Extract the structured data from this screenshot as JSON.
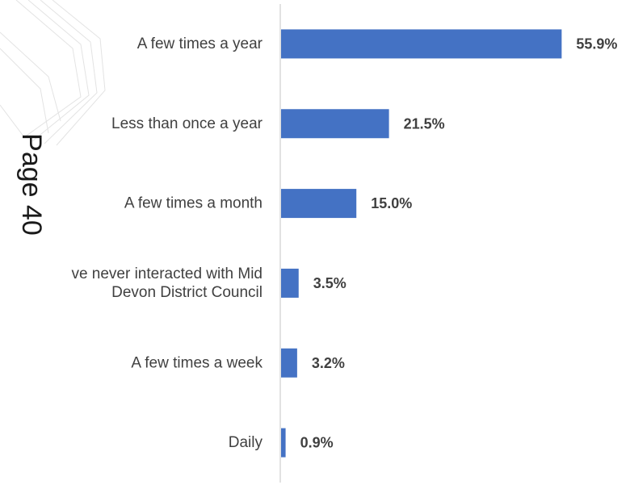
{
  "page_marker": "Page 40",
  "colors": {
    "bar": "#4472c4",
    "axis": "#d9d9d9",
    "text": "#404040"
  },
  "chart_data": {
    "type": "bar",
    "orientation": "horizontal",
    "title": "",
    "xlabel": "",
    "ylabel": "",
    "categories": [
      "A few times a year",
      "Less than once a year",
      "A few times a month",
      "I have never interacted with Mid Devon District Council",
      "A few times a week",
      "Daily"
    ],
    "category_lines": [
      [
        "A few times a year"
      ],
      [
        "Less than once a year"
      ],
      [
        "A few times a month"
      ],
      [
        "ve never interacted with Mid",
        "Devon District Council"
      ],
      [
        "A few times a week"
      ],
      [
        "Daily"
      ]
    ],
    "values": [
      55.9,
      21.5,
      15.0,
      3.5,
      3.2,
      0.9
    ],
    "value_labels": [
      "55.9%",
      "21.5%",
      "15.0%",
      "3.5%",
      "3.2%",
      "0.9%"
    ],
    "unit": "%",
    "xlim": [
      0,
      56
    ],
    "grid": false,
    "legend": "none"
  }
}
